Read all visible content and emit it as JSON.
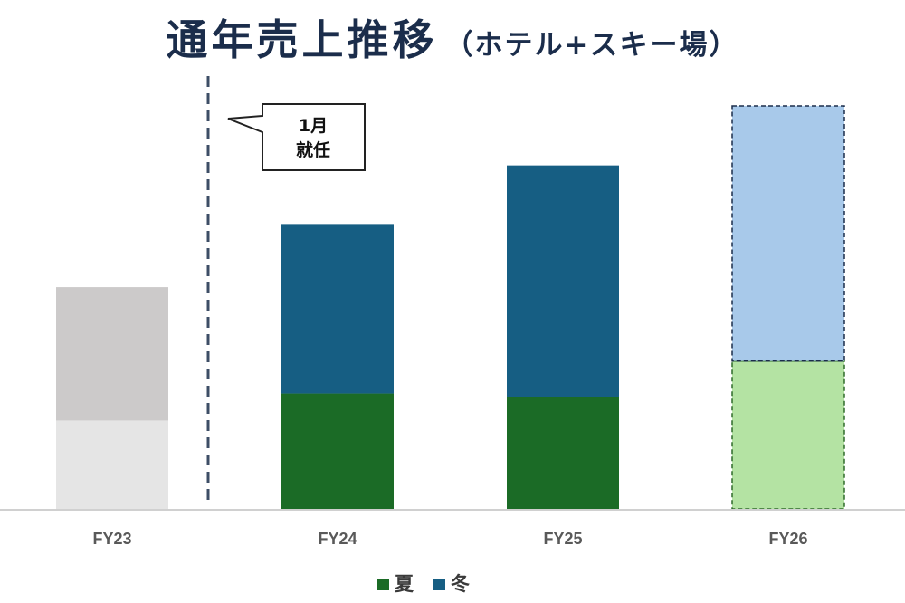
{
  "title": {
    "main": "通年売上推移",
    "sub": "（ホテル+スキー場）"
  },
  "annotation": {
    "line1": "1月",
    "line2": "就任"
  },
  "colors": {
    "summer": "#1b6b26",
    "winter": "#165e83",
    "fy23_summer": "#e5e5e5",
    "fy23_winter": "#cccaca",
    "fy26_summer": "#b4e3a3",
    "fy26_winter": "#a8c9ea",
    "divider": "#3d4e66",
    "axis": "#d0d0d0"
  },
  "chart_data": {
    "type": "bar",
    "stacked": true,
    "categories": [
      "FY23",
      "FY24",
      "FY25",
      "FY26"
    ],
    "series": [
      {
        "name": "夏",
        "values": [
          98,
          128,
          124,
          164
        ]
      },
      {
        "name": "冬",
        "values": [
          148,
          188,
          257,
          283
        ]
      }
    ],
    "ylim": [
      0,
      460
    ],
    "legend": "bottom-center",
    "grid": false,
    "styles": {
      "FY23": "greyed",
      "FY26": "dashed-outline"
    }
  }
}
